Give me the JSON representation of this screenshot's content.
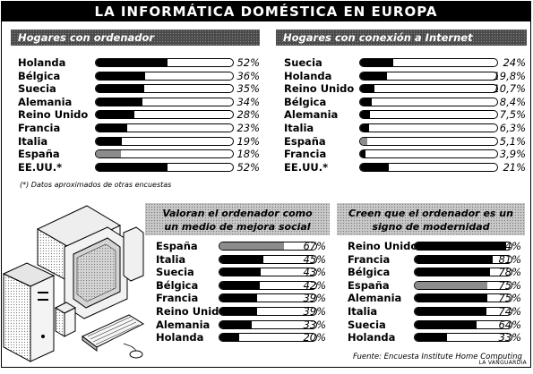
{
  "title": "LA INFORMÁTICA DOMÉSTICA EN EUROPA",
  "note": "(*) Datos aproximados de otras encuestas",
  "source": "Fuente: Encuesta Institute Home Computing",
  "credit": "LA VANGUARDIA",
  "chart_data": [
    {
      "type": "bar",
      "title": "Hogares con ordenador",
      "categories": [
        "Holanda",
        "Bélgica",
        "Suecia",
        "Alemania",
        "Reino Unido",
        "Francia",
        "Italia",
        "España",
        "EE.UU.*"
      ],
      "values": [
        52,
        36,
        35,
        34,
        28,
        23,
        19,
        18,
        52
      ],
      "labels": [
        "52%",
        "36%",
        "35%",
        "34%",
        "28%",
        "23%",
        "19%",
        "18%",
        "52%"
      ],
      "highlight": [
        "España"
      ],
      "xlim": [
        0,
        100
      ]
    },
    {
      "type": "bar",
      "title": "Hogares con conexión a Internet",
      "categories": [
        "Suecia",
        "Holanda",
        "Reino Unido",
        "Bélgica",
        "Alemania",
        "Italia",
        "España",
        "Francia",
        "EE.UU.*"
      ],
      "values": [
        24,
        19.8,
        10.7,
        8.4,
        7.5,
        6.3,
        5.1,
        3.9,
        21
      ],
      "labels": [
        "24%",
        "19,8%",
        "10,7%",
        "8,4%",
        "7,5%",
        "6,3%",
        "5,1%",
        "3,9%",
        "21%"
      ],
      "highlight": [
        "España"
      ],
      "xlim": [
        0,
        100
      ]
    },
    {
      "type": "bar",
      "title": "Valoran el ordenador como un medio de mejora social",
      "categories": [
        "España",
        "Italia",
        "Suecia",
        "Bélgica",
        "Francia",
        "Reino Unido",
        "Alemania",
        "Holanda"
      ],
      "values": [
        67,
        45,
        43,
        42,
        39,
        39,
        33,
        20
      ],
      "labels": [
        "67%",
        "45%",
        "43%",
        "42%",
        "39%",
        "39%",
        "33%",
        "20%"
      ],
      "highlight": [
        "España"
      ],
      "xlim": [
        0,
        100
      ]
    },
    {
      "type": "bar",
      "title": "Creen que el ordenador es un signo de modernidad",
      "categories": [
        "Reino Unido",
        "Francia",
        "Bélgica",
        "España",
        "Alemania",
        "Italia",
        "Suecia",
        "Holanda"
      ],
      "values": [
        94,
        81,
        78,
        75,
        75,
        74,
        64,
        33
      ],
      "labels": [
        "94%",
        "81%",
        "78%",
        "75%",
        "75%",
        "74%",
        "64%",
        "33%"
      ],
      "highlight": [
        "España"
      ],
      "xlim": [
        0,
        100
      ]
    }
  ]
}
